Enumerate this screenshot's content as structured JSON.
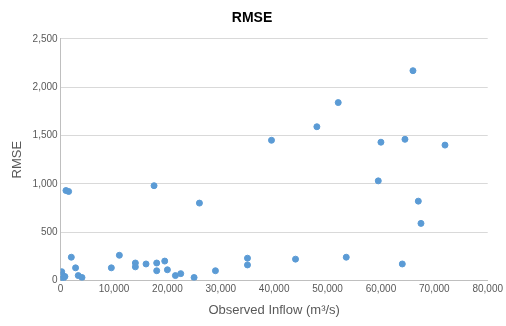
{
  "chart_data": {
    "type": "scatter",
    "title": "RMSE",
    "x_label": "Observed Inflow (m³/s)",
    "y_label": "RMSE",
    "x": [
      100,
      200,
      300,
      500,
      800,
      1000,
      1500,
      2000,
      2800,
      3300,
      4000,
      9500,
      11000,
      14000,
      14000,
      16000,
      17500,
      18000,
      18000,
      19500,
      20000,
      21500,
      22500,
      25000,
      26000,
      29000,
      35000,
      35000,
      39500,
      44000,
      48000,
      52000,
      53500,
      59500,
      60000,
      64000,
      64500,
      66000,
      67000,
      67500,
      72000
    ],
    "values": [
      10,
      90,
      60,
      20,
      40,
      930,
      920,
      240,
      130,
      50,
      30,
      130,
      260,
      180,
      140,
      170,
      980,
      180,
      100,
      200,
      110,
      50,
      70,
      30,
      800,
      100,
      230,
      160,
      1450,
      220,
      1590,
      1840,
      240,
      1030,
      1430,
      170,
      1460,
      2170,
      820,
      590,
      1400
    ],
    "color": "#5b9bd5",
    "marker": "circle",
    "xlim": [
      0,
      80000
    ],
    "xticks": [
      0,
      10000,
      20000,
      30000,
      40000,
      50000,
      60000,
      70000,
      80000
    ],
    "ylim": [
      0,
      2500
    ],
    "yticks": [
      0,
      500,
      1000,
      1500,
      2000,
      2500
    ],
    "grid": "y"
  }
}
